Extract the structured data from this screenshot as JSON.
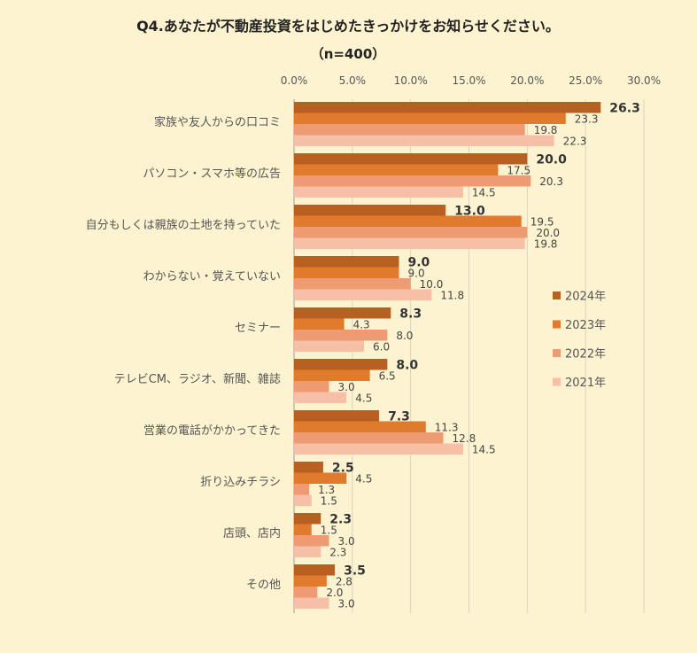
{
  "chart_data": {
    "type": "bar",
    "orientation": "horizontal",
    "title": "Q4.あなたが不動産投資をはじめたきっかけをお知らせください。",
    "subtitle": "（n=400）",
    "x_ticks": [
      "0.0%",
      "5.0%",
      "10.0%",
      "15.0%",
      "20.0%",
      "25.0%",
      "30.0%"
    ],
    "xlim": [
      0,
      30
    ],
    "grid": true,
    "legend_position": "right",
    "categories": [
      "家族や友人からの口コミ",
      "パソコン・スマホ等の広告",
      "自分もしくは親族の土地を持っていた",
      "わからない・覚えていない",
      "セミナー",
      "テレビCM、ラジオ、新聞、雑誌",
      "営業の電話がかかってきた",
      "折り込みチラシ",
      "店頭、店内",
      "その他"
    ],
    "series": [
      {
        "name": "2024年",
        "color": "#b85f22",
        "values": [
          26.3,
          20.0,
          13.0,
          9.0,
          8.3,
          8.0,
          7.3,
          2.5,
          2.3,
          3.5
        ],
        "labels": [
          "26.3",
          "20.0",
          "13.0",
          "9.0",
          "8.3",
          "8.0",
          "7.3",
          "2.5",
          "2.3",
          "3.5"
        ]
      },
      {
        "name": "2023年",
        "color": "#e07a2c",
        "values": [
          23.3,
          17.5,
          19.5,
          9.0,
          4.3,
          6.5,
          11.3,
          4.5,
          1.5,
          2.8
        ],
        "labels": [
          "23.3",
          "17.5",
          "19.5",
          "9.0",
          "4.3",
          "6.5",
          "11.3",
          "4.5",
          "1.5",
          "2.8"
        ]
      },
      {
        "name": "2022年",
        "color": "#ee9a72",
        "values": [
          19.8,
          20.3,
          20.0,
          10.0,
          8.0,
          3.0,
          12.8,
          1.3,
          3.0,
          2.0
        ],
        "labels": [
          "19.8",
          "20.3",
          "20.0",
          "10.0",
          "8.0",
          "3.0",
          "12.8",
          "1.3",
          "3.0",
          "2.0"
        ]
      },
      {
        "name": "2021年",
        "color": "#f7c0a6",
        "values": [
          22.3,
          14.5,
          19.8,
          11.8,
          6.0,
          4.5,
          14.5,
          1.5,
          2.3,
          3.0
        ],
        "labels": [
          "22.3",
          "14.5",
          "19.8",
          "11.8",
          "6.0",
          "4.5",
          "14.5",
          "1.5",
          "2.3",
          "3.0"
        ]
      }
    ]
  }
}
